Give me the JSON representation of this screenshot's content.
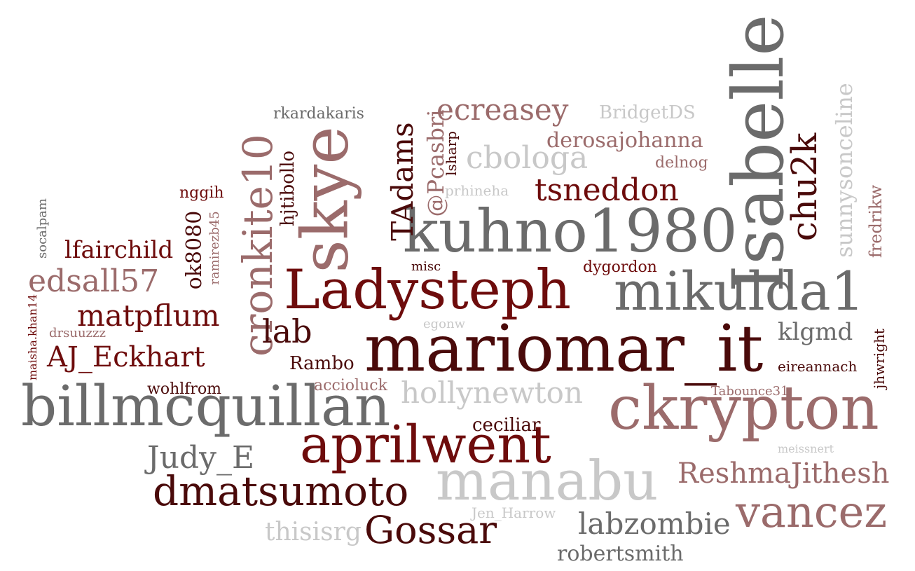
{
  "colors": {
    "dark": "#4a0a0a",
    "red": "#6e0c0c",
    "gray": "#6b6b6b",
    "rose": "#9b6b6b",
    "light": "#c8c8c8"
  },
  "words": [
    "mariomar_it",
    "kuhno1980",
    "billmcquillan",
    "ckrypton",
    "Isabelle",
    "skye",
    "mikulda1",
    "aprilwent",
    "manabu",
    "Ladysteph",
    "cronkite10",
    "dmatsumoto",
    "vancez",
    "chu2k",
    "Gossar",
    "hollynewton",
    "labzombie",
    "ecreasey",
    "cbologa",
    "tsneddon",
    "ReshmaJithesh",
    "edsall57",
    "AJ_Eckhart",
    "matpflum",
    "Judy_E",
    "TAdams",
    "lab",
    "sunnysonceline",
    "thisisrg",
    "lfairchild",
    "derosajohanna",
    "klgmd",
    "robertsmith",
    "@Pcasbri",
    "ok8080",
    "BridgetDS",
    "ceciliar",
    "Rambo",
    "hjtibollo",
    "fredrikw",
    "dygordon",
    "accioluck",
    "wohlfrom",
    "rkardakaris",
    "delnog",
    "eireannach",
    "jhwright",
    "Jen_Harrow",
    "nggih",
    "lsharp",
    "prhineha",
    "egonw",
    "misc",
    "Tabounce31",
    "ramirezb45",
    "socalpam",
    "drsuuzzz",
    "maisha.khan14",
    "meissnert"
  ]
}
